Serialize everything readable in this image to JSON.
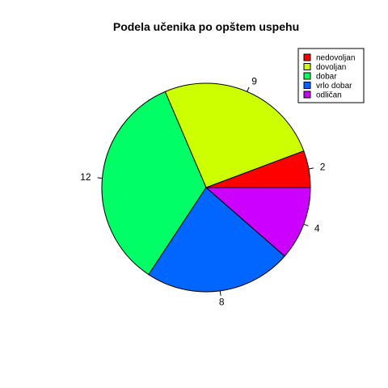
{
  "chart_data": {
    "type": "pie",
    "title": "Podela učenika po opštem uspehu",
    "categories": [
      "nedovoljan",
      "dovoljan",
      "dobar",
      "vrlo dobar",
      "odličan"
    ],
    "values": [
      2,
      9,
      12,
      8,
      4
    ],
    "colors": [
      "#FF0000",
      "#CCFF00",
      "#00FF66",
      "#0066FF",
      "#CC00FF"
    ],
    "legend_position": "top-right",
    "start_angle": "3-o'clock, counterclockwise"
  }
}
